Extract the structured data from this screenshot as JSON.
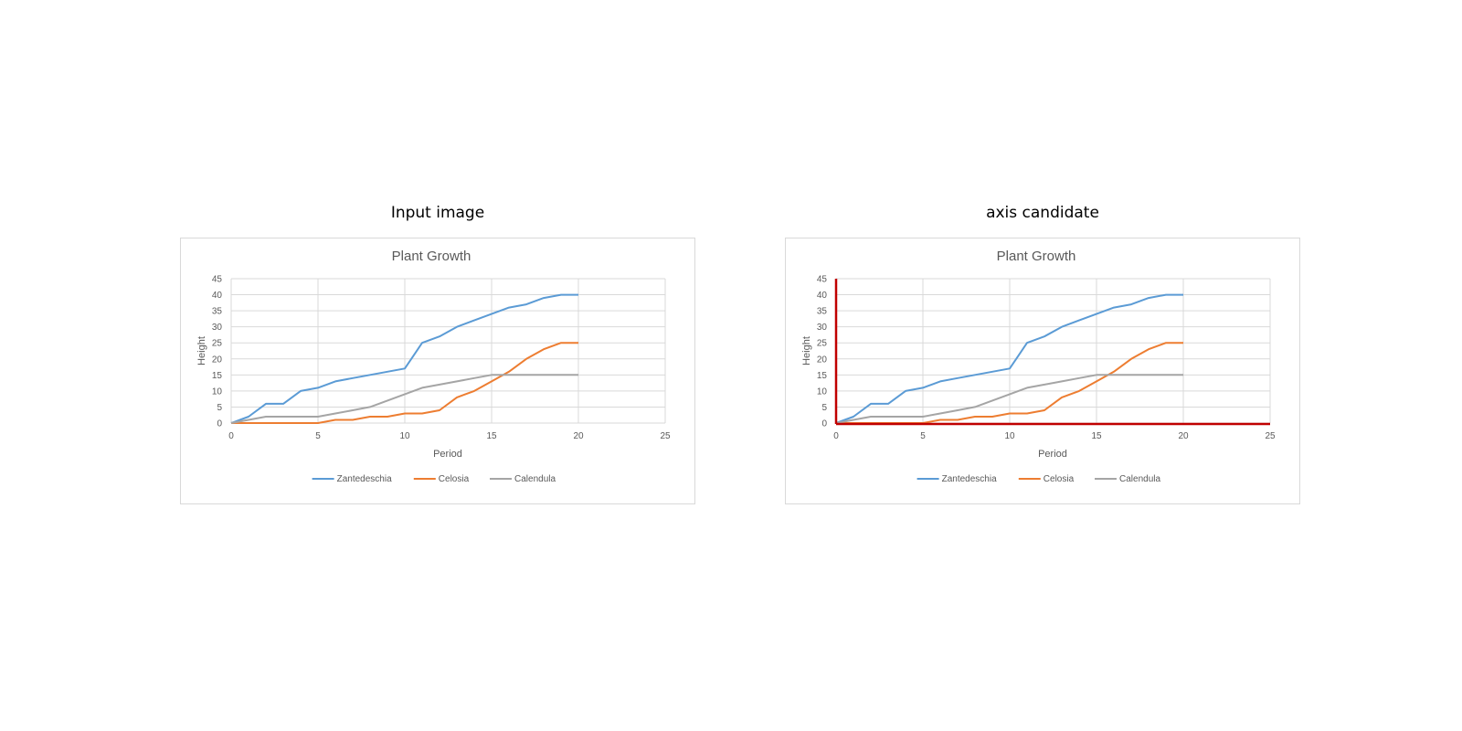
{
  "panels": [
    {
      "title": "Input image",
      "highlight_axes": false
    },
    {
      "title": "axis candidate",
      "highlight_axes": true
    }
  ],
  "highlight_color": "#c00000",
  "chart_data": {
    "type": "line",
    "title": "Plant Growth",
    "xlabel": "Period",
    "ylabel": "Height",
    "xlim": [
      0,
      25
    ],
    "ylim": [
      0,
      45
    ],
    "xticks": [
      0,
      5,
      10,
      15,
      20,
      25
    ],
    "yticks": [
      0,
      5,
      10,
      15,
      20,
      25,
      30,
      35,
      40,
      45
    ],
    "grid": true,
    "legend_position": "bottom",
    "series": [
      {
        "name": "Zantedeschia",
        "color": "#5b9bd5",
        "points": [
          [
            0,
            0
          ],
          [
            1,
            2
          ],
          [
            2,
            6
          ],
          [
            3,
            6
          ],
          [
            3.5,
            8
          ],
          [
            4,
            10
          ],
          [
            5,
            11
          ],
          [
            5.5,
            12
          ],
          [
            6,
            13
          ],
          [
            7,
            14
          ],
          [
            8,
            15
          ],
          [
            9,
            16
          ],
          [
            10,
            17
          ],
          [
            10.5,
            21
          ],
          [
            11,
            25
          ],
          [
            12,
            27
          ],
          [
            13,
            30
          ],
          [
            14,
            32
          ],
          [
            15,
            34
          ],
          [
            16,
            36
          ],
          [
            17,
            37
          ],
          [
            18,
            39
          ],
          [
            19,
            40
          ],
          [
            20,
            40
          ]
        ]
      },
      {
        "name": "Celosia",
        "color": "#ed7d31",
        "points": [
          [
            0,
            0
          ],
          [
            5,
            0
          ],
          [
            6,
            1
          ],
          [
            7,
            1
          ],
          [
            8,
            2
          ],
          [
            9,
            2
          ],
          [
            10,
            3
          ],
          [
            11,
            3
          ],
          [
            12,
            4
          ],
          [
            13,
            8
          ],
          [
            14,
            10
          ],
          [
            15,
            13
          ],
          [
            16,
            16
          ],
          [
            17,
            20
          ],
          [
            18,
            23
          ],
          [
            19,
            25
          ],
          [
            20,
            25
          ]
        ]
      },
      {
        "name": "Calendula",
        "color": "#a5a5a5",
        "points": [
          [
            0,
            0
          ],
          [
            1,
            1
          ],
          [
            2,
            2
          ],
          [
            3,
            2
          ],
          [
            4,
            2
          ],
          [
            5,
            2
          ],
          [
            6,
            3
          ],
          [
            7,
            4
          ],
          [
            8,
            5
          ],
          [
            9,
            7
          ],
          [
            10,
            9
          ],
          [
            11,
            11
          ],
          [
            12,
            12
          ],
          [
            13,
            13
          ],
          [
            14,
            14
          ],
          [
            15,
            15
          ],
          [
            16,
            15
          ],
          [
            17,
            15
          ],
          [
            18,
            15
          ],
          [
            19,
            15
          ],
          [
            20,
            15
          ]
        ]
      }
    ]
  }
}
